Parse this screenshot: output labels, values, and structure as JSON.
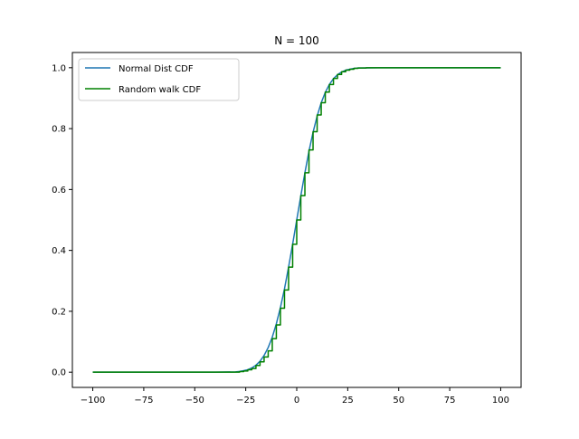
{
  "chart_data": {
    "type": "line",
    "title": "N = 100",
    "xlabel": "",
    "ylabel": "",
    "xlim": [
      -100,
      100
    ],
    "ylim": [
      0,
      1
    ],
    "xticks": [
      -100,
      -75,
      -50,
      -25,
      0,
      25,
      50,
      75,
      100
    ],
    "xtick_labels": [
      "−100",
      "−75",
      "−50",
      "−25",
      "0",
      "25",
      "50",
      "75",
      "100"
    ],
    "yticks": [
      0.0,
      0.2,
      0.4,
      0.6,
      0.8,
      1.0
    ],
    "ytick_labels": [
      "0.0",
      "0.2",
      "0.4",
      "0.6",
      "0.8",
      "1.0"
    ],
    "grid": false,
    "legend_position": "top-left",
    "series": [
      {
        "name": "Normal Dist CDF",
        "color": "#1f77b4",
        "style": "smooth",
        "points": [
          [
            -100,
            0.0
          ],
          [
            -40,
            0.0
          ],
          [
            -30,
            0.001
          ],
          [
            -28,
            0.0025
          ],
          [
            -26,
            0.005
          ],
          [
            -24,
            0.008
          ],
          [
            -22,
            0.014
          ],
          [
            -20,
            0.023
          ],
          [
            -18,
            0.036
          ],
          [
            -16,
            0.055
          ],
          [
            -14,
            0.081
          ],
          [
            -12,
            0.115
          ],
          [
            -10,
            0.159
          ],
          [
            -8,
            0.212
          ],
          [
            -6,
            0.274
          ],
          [
            -4,
            0.345
          ],
          [
            -2,
            0.421
          ],
          [
            0,
            0.5
          ],
          [
            2,
            0.579
          ],
          [
            4,
            0.655
          ],
          [
            6,
            0.726
          ],
          [
            8,
            0.788
          ],
          [
            10,
            0.841
          ],
          [
            12,
            0.885
          ],
          [
            14,
            0.919
          ],
          [
            16,
            0.945
          ],
          [
            18,
            0.964
          ],
          [
            20,
            0.977
          ],
          [
            22,
            0.986
          ],
          [
            24,
            0.992
          ],
          [
            26,
            0.995
          ],
          [
            28,
            0.9975
          ],
          [
            30,
            0.999
          ],
          [
            40,
            1.0
          ],
          [
            100,
            1.0
          ]
        ]
      },
      {
        "name": "Random walk CDF",
        "color": "#008000",
        "style": "step",
        "points": [
          [
            -100,
            0.0
          ],
          [
            -30,
            0.0
          ],
          [
            -28,
            0.002
          ],
          [
            -26,
            0.004
          ],
          [
            -24,
            0.008
          ],
          [
            -22,
            0.012
          ],
          [
            -20,
            0.022
          ],
          [
            -18,
            0.034
          ],
          [
            -16,
            0.05
          ],
          [
            -14,
            0.07
          ],
          [
            -12,
            0.11
          ],
          [
            -10,
            0.155
          ],
          [
            -8,
            0.21
          ],
          [
            -6,
            0.27
          ],
          [
            -4,
            0.345
          ],
          [
            -2,
            0.42
          ],
          [
            0,
            0.5
          ],
          [
            2,
            0.58
          ],
          [
            4,
            0.655
          ],
          [
            6,
            0.73
          ],
          [
            8,
            0.79
          ],
          [
            10,
            0.845
          ],
          [
            12,
            0.885
          ],
          [
            14,
            0.92
          ],
          [
            16,
            0.945
          ],
          [
            18,
            0.965
          ],
          [
            20,
            0.978
          ],
          [
            22,
            0.987
          ],
          [
            24,
            0.992
          ],
          [
            26,
            0.995
          ],
          [
            28,
            0.998
          ],
          [
            30,
            0.999
          ],
          [
            34,
            1.0
          ],
          [
            100,
            1.0
          ]
        ]
      }
    ]
  }
}
